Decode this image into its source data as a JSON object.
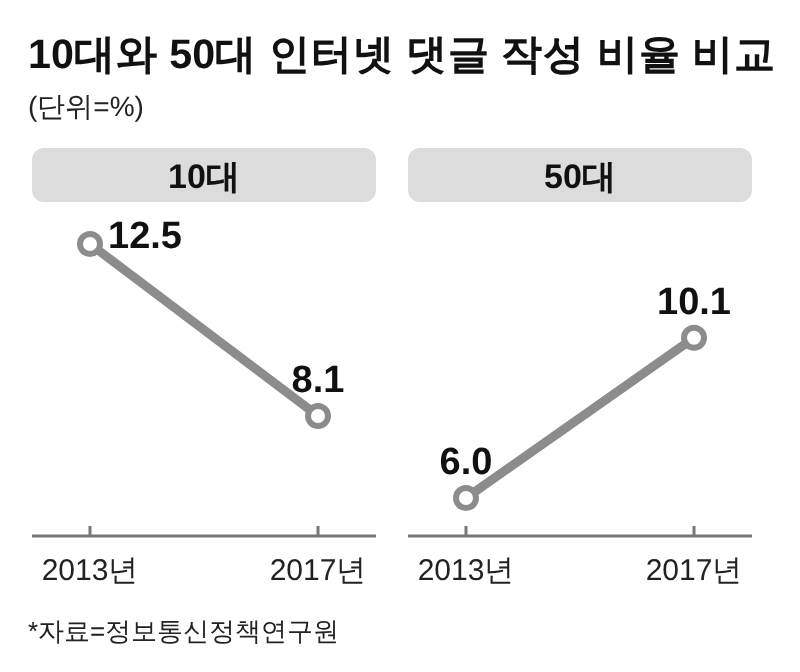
{
  "chart_data": [
    {
      "type": "other",
      "title": "10대와 50대 인터넷 댓글 작성 비율 비교",
      "subtitle": "(단위=%)"
    },
    {
      "type": "line",
      "title": "10대",
      "categories": [
        "2013년",
        "2017년"
      ],
      "values": [
        12.5,
        8.1
      ],
      "value_labels": [
        "12.5",
        "8.1"
      ],
      "color": "#8c8c8c",
      "marker": "circle",
      "annotations": [
        "*자료=정보통신정책연구원"
      ]
    },
    {
      "type": "line",
      "title": "50대",
      "categories": [
        "2013년",
        "2017년"
      ],
      "values": [
        6.0,
        10.1
      ],
      "value_labels": [
        "6.0",
        "10.1"
      ],
      "color": "#8c8c8c",
      "marker": "circle"
    }
  ]
}
